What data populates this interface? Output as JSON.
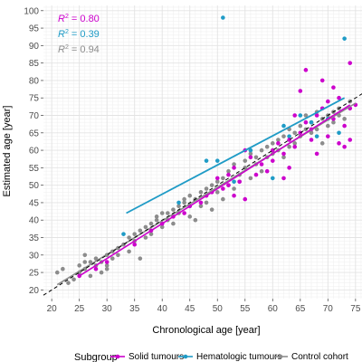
{
  "chart_data": {
    "type": "scatter",
    "xlabel": "Chronological age [year]",
    "ylabel": "Estimated age [year]",
    "xlim": [
      18.5,
      76.5
    ],
    "ylim": [
      17.5,
      101.5
    ],
    "x_ticks": [
      20,
      25,
      30,
      35,
      40,
      45,
      50,
      55,
      60,
      65,
      70,
      75
    ],
    "y_ticks": [
      20,
      25,
      30,
      35,
      40,
      45,
      50,
      55,
      60,
      65,
      70,
      75,
      80,
      85,
      90,
      95,
      100
    ],
    "grid": true,
    "legend_position": "bottom",
    "legend_title": "Subgroup",
    "annotations": [
      {
        "r2_prefix": "R",
        "r2_suffix": " = 0.80",
        "color": "#cc00cc"
      },
      {
        "r2_prefix": "R",
        "r2_suffix": " = 0.39",
        "color": "#1f9bc6"
      },
      {
        "r2_prefix": "R",
        "r2_suffix": " = 0.94",
        "color": "#8c8c8c"
      }
    ],
    "identity_line": {
      "x": [
        18.5,
        76.5
      ],
      "y": [
        18.5,
        76.5
      ],
      "style": "dashed",
      "color": "#000000"
    },
    "series": [
      {
        "name": "Solid tumours",
        "color": "#cc00cc",
        "fit": {
          "x": [
            25,
            74
          ],
          "y": [
            24,
            73
          ]
        },
        "points": [
          [
            25,
            24
          ],
          [
            28,
            26
          ],
          [
            30,
            28
          ],
          [
            35,
            33
          ],
          [
            38,
            37
          ],
          [
            40,
            39
          ],
          [
            42,
            41
          ],
          [
            44,
            42
          ],
          [
            45,
            44
          ],
          [
            47,
            45
          ],
          [
            48,
            47
          ],
          [
            49,
            48
          ],
          [
            50,
            52
          ],
          [
            51,
            49
          ],
          [
            52,
            50
          ],
          [
            52,
            53
          ],
          [
            53,
            47
          ],
          [
            53,
            55
          ],
          [
            54,
            51
          ],
          [
            55,
            46
          ],
          [
            55,
            60
          ],
          [
            56,
            58
          ],
          [
            57,
            53
          ],
          [
            58,
            56
          ],
          [
            59,
            54
          ],
          [
            60,
            57
          ],
          [
            60,
            60
          ],
          [
            61,
            62
          ],
          [
            62,
            52
          ],
          [
            62,
            59
          ],
          [
            63,
            55
          ],
          [
            63,
            63
          ],
          [
            64,
            61
          ],
          [
            64,
            70
          ],
          [
            65,
            65
          ],
          [
            65,
            77
          ],
          [
            66,
            68
          ],
          [
            66,
            83
          ],
          [
            67,
            66
          ],
          [
            67,
            63
          ],
          [
            68,
            70
          ],
          [
            68,
            59
          ],
          [
            69,
            72
          ],
          [
            69,
            80
          ],
          [
            70,
            74
          ],
          [
            70,
            64
          ],
          [
            71,
            69
          ],
          [
            71,
            78
          ],
          [
            72,
            75
          ],
          [
            72,
            62
          ],
          [
            73,
            67
          ],
          [
            73,
            61
          ],
          [
            74,
            72
          ],
          [
            74,
            85
          ],
          [
            75,
            73
          ],
          [
            74,
            63
          ]
        ]
      },
      {
        "name": "Hematologic tumours",
        "color": "#1f9bc6",
        "fit": {
          "x": [
            33.5,
            73
          ],
          "y": [
            42,
            75
          ]
        },
        "points": [
          [
            33,
            36
          ],
          [
            43,
            45
          ],
          [
            45,
            44
          ],
          [
            48,
            57
          ],
          [
            50,
            57
          ],
          [
            51,
            98
          ],
          [
            53,
            51
          ],
          [
            56,
            60
          ],
          [
            60,
            52
          ],
          [
            62,
            67
          ],
          [
            63,
            64
          ],
          [
            65,
            70
          ],
          [
            67,
            68
          ],
          [
            68,
            64
          ],
          [
            70,
            69
          ],
          [
            72,
            65
          ],
          [
            73,
            92
          ]
        ]
      },
      {
        "name": "Control cohort",
        "color": "#8c8c8c",
        "fit": {
          "x": [
            21,
            75
          ],
          "y": [
            21.5,
            73.5
          ]
        },
        "points": [
          [
            21,
            25
          ],
          [
            22,
            26
          ],
          [
            23,
            22
          ],
          [
            24,
            23
          ],
          [
            25,
            25
          ],
          [
            25,
            27
          ],
          [
            26,
            28
          ],
          [
            26,
            30
          ],
          [
            26,
            26
          ],
          [
            27,
            28
          ],
          [
            27,
            24
          ],
          [
            28,
            27
          ],
          [
            28,
            29
          ],
          [
            29,
            25
          ],
          [
            29,
            28
          ],
          [
            30,
            27
          ],
          [
            30,
            30
          ],
          [
            30,
            26
          ],
          [
            31,
            31
          ],
          [
            31,
            29
          ],
          [
            32,
            32
          ],
          [
            32,
            30
          ],
          [
            33,
            33
          ],
          [
            34,
            31
          ],
          [
            34,
            35
          ],
          [
            35,
            34
          ],
          [
            35,
            36
          ],
          [
            36,
            29
          ],
          [
            36,
            37
          ],
          [
            37,
            38
          ],
          [
            37,
            35
          ],
          [
            38,
            39
          ],
          [
            38,
            36
          ],
          [
            39,
            41
          ],
          [
            39,
            40
          ],
          [
            40,
            38
          ],
          [
            40,
            42
          ],
          [
            41,
            42
          ],
          [
            41,
            40
          ],
          [
            42,
            43
          ],
          [
            42,
            39
          ],
          [
            43,
            44
          ],
          [
            43,
            42
          ],
          [
            44,
            46
          ],
          [
            44,
            45
          ],
          [
            45,
            41
          ],
          [
            45,
            47
          ],
          [
            46,
            40
          ],
          [
            46,
            46
          ],
          [
            47,
            44
          ],
          [
            47,
            48
          ],
          [
            48,
            45
          ],
          [
            48,
            49
          ],
          [
            49,
            43
          ],
          [
            49,
            50
          ],
          [
            50,
            48
          ],
          [
            50,
            51
          ],
          [
            51,
            52
          ],
          [
            51,
            46
          ],
          [
            52,
            50
          ],
          [
            52,
            54
          ],
          [
            53,
            49
          ],
          [
            53,
            56
          ],
          [
            54,
            53
          ],
          [
            54,
            51
          ],
          [
            55,
            55
          ],
          [
            55,
            57
          ],
          [
            56,
            52
          ],
          [
            56,
            59
          ],
          [
            57,
            56
          ],
          [
            57,
            58
          ],
          [
            58,
            54
          ],
          [
            58,
            60
          ],
          [
            59,
            58
          ],
          [
            59,
            61
          ],
          [
            60,
            59
          ],
          [
            60,
            62
          ],
          [
            61,
            60
          ],
          [
            61,
            63
          ],
          [
            62,
            58
          ],
          [
            62,
            64
          ],
          [
            63,
            66
          ],
          [
            63,
            61
          ],
          [
            64,
            65
          ],
          [
            64,
            62
          ],
          [
            65,
            67
          ],
          [
            65,
            64
          ],
          [
            66,
            70
          ],
          [
            66,
            66
          ],
          [
            67,
            68
          ],
          [
            67,
            65
          ],
          [
            68,
            71
          ],
          [
            68,
            66
          ],
          [
            69,
            62
          ],
          [
            69,
            69
          ],
          [
            70,
            70
          ],
          [
            70,
            67
          ],
          [
            71,
            71
          ],
          [
            71,
            68
          ],
          [
            72,
            72
          ],
          [
            72,
            70
          ],
          [
            73,
            69
          ],
          [
            74,
            74
          ]
        ]
      }
    ]
  }
}
